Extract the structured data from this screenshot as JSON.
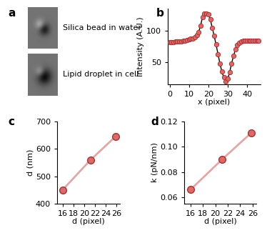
{
  "chart_data": [
    {
      "type": "image",
      "panel": "a",
      "labels": [
        "Silica bead in water",
        "Lipid droplet in cell"
      ]
    },
    {
      "type": "line",
      "panel": "b",
      "x_label": "x (pixel)",
      "y_label": "Intensity (A.U.)",
      "x": [
        0,
        1,
        2,
        3,
        4,
        5,
        6,
        7,
        8,
        9,
        10,
        11,
        12,
        13,
        14,
        15,
        16,
        17,
        18,
        19,
        20,
        21,
        22,
        23,
        24,
        25,
        26,
        27,
        28,
        29,
        30,
        31,
        32,
        33,
        34,
        35,
        36,
        37,
        38,
        39,
        40,
        41,
        42,
        43,
        44,
        45,
        46
      ],
      "values": [
        82,
        82,
        82,
        83,
        83,
        83,
        83,
        84,
        84,
        85,
        86,
        87,
        88,
        90,
        93,
        98,
        108,
        122,
        127,
        127,
        126,
        118,
        105,
        92,
        78,
        63,
        48,
        35,
        26,
        20,
        24,
        34,
        48,
        60,
        70,
        77,
        81,
        83,
        84,
        84,
        84,
        84,
        84,
        84,
        84,
        84,
        84
      ],
      "color": "#d96a6a",
      "marker": "circle",
      "xlim": [
        -1,
        47
      ],
      "xticks": [
        0,
        10,
        20,
        30,
        40
      ],
      "ylim": [
        15,
        135
      ],
      "yticks": [
        50,
        100
      ]
    },
    {
      "type": "scatter",
      "panel": "c",
      "x_label": "d (pixel)",
      "y_label": "d (nm)",
      "x": [
        16,
        21.2,
        25.8
      ],
      "values": [
        450,
        560,
        645
      ],
      "color": "#d96a6a",
      "marker": "circle",
      "xlim": [
        15,
        26.6
      ],
      "xticks": [
        16,
        18,
        20,
        22,
        24,
        26
      ],
      "ylim": [
        400,
        700
      ],
      "yticks": [
        400,
        500,
        600,
        700
      ]
    },
    {
      "type": "scatter",
      "panel": "d",
      "x_label": "d (pixel)",
      "y_label": "k (pN/nm)",
      "x": [
        16,
        21.1,
        25.8
      ],
      "values": [
        0.066,
        0.09,
        0.111
      ],
      "color": "#d96a6a",
      "marker": "circle",
      "xlim": [
        15,
        26.6
      ],
      "xticks": [
        16,
        18,
        20,
        22,
        24,
        26
      ],
      "ylim": [
        0.055,
        0.12
      ],
      "yticks": [
        0.06,
        0.08,
        {
          "value": 0.1,
          "label": "0.10"
        },
        0.12
      ]
    }
  ]
}
